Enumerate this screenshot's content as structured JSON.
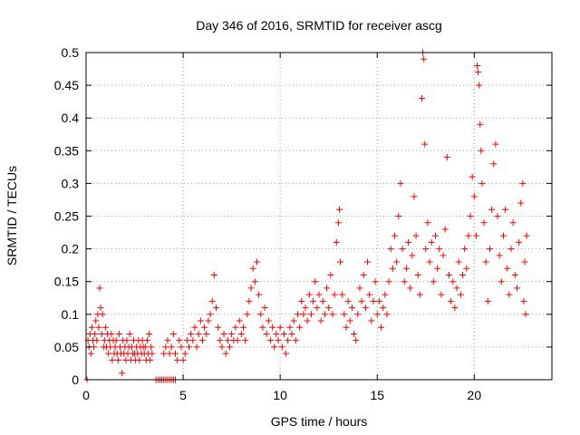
{
  "chart_data": {
    "type": "scatter",
    "title": "Day 346 of 2016, SRMTID for receiver ascg",
    "xlabel": "GPS time / hours",
    "ylabel": "SRMTID / TECUs",
    "xlim": [
      0,
      24
    ],
    "ylim": [
      0,
      0.5
    ],
    "xticks": [
      0,
      5,
      10,
      15,
      20
    ],
    "yticks": [
      0,
      0.05,
      0.1,
      0.15,
      0.2,
      0.25,
      0.3,
      0.35,
      0.4,
      0.45,
      0.5
    ],
    "ytick_labels": [
      "0",
      "0.05",
      "0.1",
      "0.15",
      "0.2",
      "0.25",
      "0.3",
      "0.35",
      "0.4",
      "0.45",
      "0.5"
    ],
    "grid": true,
    "marker": "+",
    "color": "#ff0000",
    "points": [
      [
        0.05,
        0.0
      ],
      [
        0.1,
        0.06
      ],
      [
        0.15,
        0.05
      ],
      [
        0.2,
        0.07
      ],
      [
        0.25,
        0.04
      ],
      [
        0.3,
        0.08
      ],
      [
        0.35,
        0.06
      ],
      [
        0.4,
        0.05
      ],
      [
        0.45,
        0.07
      ],
      [
        0.5,
        0.09
      ],
      [
        0.55,
        0.06
      ],
      [
        0.6,
        0.1
      ],
      [
        0.65,
        0.08
      ],
      [
        0.7,
        0.14
      ],
      [
        0.75,
        0.11
      ],
      [
        0.8,
        0.07
      ],
      [
        0.85,
        0.1
      ],
      [
        0.9,
        0.05
      ],
      [
        0.95,
        0.06
      ],
      [
        1.0,
        0.08
      ],
      [
        1.05,
        0.05
      ],
      [
        1.1,
        0.07
      ],
      [
        1.15,
        0.04
      ],
      [
        1.2,
        0.06
      ],
      [
        1.25,
        0.05
      ],
      [
        1.3,
        0.07
      ],
      [
        1.35,
        0.03
      ],
      [
        1.4,
        0.06
      ],
      [
        1.45,
        0.04
      ],
      [
        1.5,
        0.05
      ],
      [
        1.55,
        0.06
      ],
      [
        1.6,
        0.04
      ],
      [
        1.65,
        0.03
      ],
      [
        1.7,
        0.07
      ],
      [
        1.75,
        0.05
      ],
      [
        1.8,
        0.04
      ],
      [
        1.85,
        0.01
      ],
      [
        1.9,
        0.06
      ],
      [
        1.95,
        0.04
      ],
      [
        2.0,
        0.05
      ],
      [
        2.05,
        0.03
      ],
      [
        2.1,
        0.06
      ],
      [
        2.15,
        0.04
      ],
      [
        2.2,
        0.05
      ],
      [
        2.25,
        0.07
      ],
      [
        2.3,
        0.03
      ],
      [
        2.35,
        0.05
      ],
      [
        2.4,
        0.04
      ],
      [
        2.45,
        0.06
      ],
      [
        2.5,
        0.04
      ],
      [
        2.55,
        0.03
      ],
      [
        2.6,
        0.05
      ],
      [
        2.65,
        0.04
      ],
      [
        2.7,
        0.06
      ],
      [
        2.75,
        0.03
      ],
      [
        2.8,
        0.05
      ],
      [
        2.85,
        0.04
      ],
      [
        2.9,
        0.06
      ],
      [
        2.95,
        0.05
      ],
      [
        3.0,
        0.04
      ],
      [
        3.05,
        0.05
      ],
      [
        3.1,
        0.03
      ],
      [
        3.15,
        0.06
      ],
      [
        3.2,
        0.04
      ],
      [
        3.25,
        0.07
      ],
      [
        3.3,
        0.03
      ],
      [
        3.35,
        0.05
      ],
      [
        3.4,
        0.04
      ],
      [
        3.6,
        0.0
      ],
      [
        3.7,
        0.0
      ],
      [
        3.8,
        0.0
      ],
      [
        3.9,
        0.0
      ],
      [
        4.0,
        0.0
      ],
      [
        4.1,
        0.0
      ],
      [
        4.2,
        0.0
      ],
      [
        4.3,
        0.0
      ],
      [
        4.4,
        0.0
      ],
      [
        4.5,
        0.0
      ],
      [
        4.6,
        0.0
      ],
      [
        4.0,
        0.04
      ],
      [
        4.1,
        0.05
      ],
      [
        4.2,
        0.06
      ],
      [
        4.3,
        0.04
      ],
      [
        4.4,
        0.05
      ],
      [
        4.5,
        0.07
      ],
      [
        4.6,
        0.04
      ],
      [
        4.7,
        0.03
      ],
      [
        4.8,
        0.06
      ],
      [
        4.9,
        0.05
      ],
      [
        5.0,
        0.03
      ],
      [
        5.1,
        0.04
      ],
      [
        5.2,
        0.06
      ],
      [
        5.3,
        0.05
      ],
      [
        5.4,
        0.07
      ],
      [
        5.5,
        0.06
      ],
      [
        5.6,
        0.08
      ],
      [
        5.7,
        0.05
      ],
      [
        5.8,
        0.07
      ],
      [
        5.9,
        0.09
      ],
      [
        6.0,
        0.06
      ],
      [
        6.1,
        0.08
      ],
      [
        6.2,
        0.07
      ],
      [
        6.3,
        0.09
      ],
      [
        6.4,
        0.1
      ],
      [
        6.5,
        0.12
      ],
      [
        6.6,
        0.16
      ],
      [
        6.7,
        0.11
      ],
      [
        6.8,
        0.08
      ],
      [
        6.9,
        0.06
      ],
      [
        7.0,
        0.05
      ],
      [
        7.1,
        0.07
      ],
      [
        7.2,
        0.04
      ],
      [
        7.3,
        0.06
      ],
      [
        7.4,
        0.05
      ],
      [
        7.5,
        0.07
      ],
      [
        7.6,
        0.06
      ],
      [
        7.7,
        0.08
      ],
      [
        7.8,
        0.06
      ],
      [
        7.9,
        0.09
      ],
      [
        8.0,
        0.07
      ],
      [
        8.1,
        0.08
      ],
      [
        8.2,
        0.06
      ],
      [
        8.3,
        0.1
      ],
      [
        8.4,
        0.12
      ],
      [
        8.5,
        0.14
      ],
      [
        8.6,
        0.17
      ],
      [
        8.7,
        0.15
      ],
      [
        8.8,
        0.18
      ],
      [
        8.9,
        0.13
      ],
      [
        9.0,
        0.1
      ],
      [
        9.1,
        0.08
      ],
      [
        9.2,
        0.11
      ],
      [
        9.3,
        0.07
      ],
      [
        9.4,
        0.09
      ],
      [
        9.5,
        0.06
      ],
      [
        9.6,
        0.08
      ],
      [
        9.7,
        0.05
      ],
      [
        9.8,
        0.07
      ],
      [
        9.9,
        0.06
      ],
      [
        10.0,
        0.08
      ],
      [
        10.1,
        0.05
      ],
      [
        10.2,
        0.07
      ],
      [
        10.3,
        0.04
      ],
      [
        10.4,
        0.06
      ],
      [
        10.5,
        0.08
      ],
      [
        10.6,
        0.07
      ],
      [
        10.7,
        0.09
      ],
      [
        10.8,
        0.06
      ],
      [
        10.9,
        0.1
      ],
      [
        11.0,
        0.08
      ],
      [
        11.1,
        0.12
      ],
      [
        11.2,
        0.1
      ],
      [
        11.3,
        0.11
      ],
      [
        11.4,
        0.09
      ],
      [
        11.5,
        0.13
      ],
      [
        11.6,
        0.1
      ],
      [
        11.7,
        0.12
      ],
      [
        11.8,
        0.15
      ],
      [
        11.9,
        0.11
      ],
      [
        12.0,
        0.13
      ],
      [
        12.1,
        0.09
      ],
      [
        12.2,
        0.12
      ],
      [
        12.3,
        0.1
      ],
      [
        12.4,
        0.14
      ],
      [
        12.5,
        0.11
      ],
      [
        12.6,
        0.16
      ],
      [
        12.7,
        0.1
      ],
      [
        12.8,
        0.13
      ],
      [
        12.9,
        0.21
      ],
      [
        13.0,
        0.24
      ],
      [
        13.05,
        0.26
      ],
      [
        13.1,
        0.18
      ],
      [
        13.2,
        0.13
      ],
      [
        13.3,
        0.1
      ],
      [
        13.4,
        0.08
      ],
      [
        13.5,
        0.12
      ],
      [
        13.6,
        0.09
      ],
      [
        13.7,
        0.11
      ],
      [
        13.8,
        0.07
      ],
      [
        13.9,
        0.06
      ],
      [
        14.0,
        0.1
      ],
      [
        14.1,
        0.14
      ],
      [
        14.2,
        0.12
      ],
      [
        14.3,
        0.16
      ],
      [
        14.4,
        0.11
      ],
      [
        14.5,
        0.18
      ],
      [
        14.6,
        0.13
      ],
      [
        14.7,
        0.09
      ],
      [
        14.8,
        0.12
      ],
      [
        14.9,
        0.15
      ],
      [
        15.0,
        0.1
      ],
      [
        15.1,
        0.12
      ],
      [
        15.2,
        0.08
      ],
      [
        15.3,
        0.11
      ],
      [
        15.4,
        0.13
      ],
      [
        15.5,
        0.1
      ],
      [
        15.6,
        0.15
      ],
      [
        15.7,
        0.2
      ],
      [
        15.8,
        0.17
      ],
      [
        15.9,
        0.22
      ],
      [
        16.0,
        0.18
      ],
      [
        16.1,
        0.25
      ],
      [
        16.2,
        0.3
      ],
      [
        16.3,
        0.2
      ],
      [
        16.4,
        0.15
      ],
      [
        16.5,
        0.17
      ],
      [
        16.6,
        0.21
      ],
      [
        16.7,
        0.14
      ],
      [
        16.8,
        0.19
      ],
      [
        16.9,
        0.28
      ],
      [
        17.0,
        0.22
      ],
      [
        17.1,
        0.16
      ],
      [
        17.2,
        0.13
      ],
      [
        17.3,
        0.43
      ],
      [
        17.35,
        0.5
      ],
      [
        17.4,
        0.49
      ],
      [
        17.45,
        0.36
      ],
      [
        17.5,
        0.2
      ],
      [
        17.6,
        0.24
      ],
      [
        17.7,
        0.18
      ],
      [
        17.8,
        0.21
      ],
      [
        17.9,
        0.15
      ],
      [
        18.0,
        0.22
      ],
      [
        18.1,
        0.17
      ],
      [
        18.2,
        0.2
      ],
      [
        18.3,
        0.13
      ],
      [
        18.4,
        0.19
      ],
      [
        18.5,
        0.23
      ],
      [
        18.6,
        0.34
      ],
      [
        18.7,
        0.16
      ],
      [
        18.8,
        0.12
      ],
      [
        18.9,
        0.15
      ],
      [
        19.0,
        0.11
      ],
      [
        19.1,
        0.14
      ],
      [
        19.2,
        0.18
      ],
      [
        19.3,
        0.13
      ],
      [
        19.4,
        0.16
      ],
      [
        19.5,
        0.2
      ],
      [
        19.6,
        0.17
      ],
      [
        19.7,
        0.22
      ],
      [
        19.8,
        0.25
      ],
      [
        19.9,
        0.31
      ],
      [
        20.0,
        0.28
      ],
      [
        20.1,
        0.22
      ],
      [
        20.15,
        0.48
      ],
      [
        20.2,
        0.47
      ],
      [
        20.25,
        0.45
      ],
      [
        20.3,
        0.39
      ],
      [
        20.35,
        0.35
      ],
      [
        20.4,
        0.3
      ],
      [
        20.5,
        0.24
      ],
      [
        20.6,
        0.18
      ],
      [
        20.7,
        0.12
      ],
      [
        20.8,
        0.2
      ],
      [
        20.9,
        0.26
      ],
      [
        21.0,
        0.33
      ],
      [
        21.1,
        0.36
      ],
      [
        21.2,
        0.25
      ],
      [
        21.3,
        0.19
      ],
      [
        21.4,
        0.15
      ],
      [
        21.5,
        0.22
      ],
      [
        21.6,
        0.26
      ],
      [
        21.7,
        0.17
      ],
      [
        21.8,
        0.13
      ],
      [
        21.9,
        0.2
      ],
      [
        22.0,
        0.24
      ],
      [
        22.1,
        0.16
      ],
      [
        22.2,
        0.14
      ],
      [
        22.3,
        0.21
      ],
      [
        22.4,
        0.27
      ],
      [
        22.5,
        0.3
      ],
      [
        22.55,
        0.12
      ],
      [
        22.6,
        0.18
      ],
      [
        22.65,
        0.1
      ],
      [
        22.7,
        0.22
      ]
    ]
  }
}
